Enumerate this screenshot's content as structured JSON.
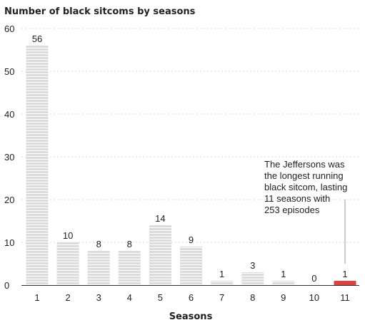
{
  "chart_data": {
    "type": "bar",
    "title": "Number of black sitcoms by seasons",
    "xlabel": "Seasons",
    "ylabel": "",
    "categories": [
      "1",
      "2",
      "3",
      "4",
      "5",
      "6",
      "7",
      "8",
      "9",
      "10",
      "11"
    ],
    "values": [
      56,
      10,
      8,
      8,
      14,
      9,
      1,
      3,
      1,
      0,
      1
    ],
    "ylim": [
      0,
      60
    ],
    "yticks": [
      0,
      10,
      20,
      30,
      40,
      50,
      60
    ],
    "grid": true,
    "highlight_index": 10,
    "bar_color": "#dcdcdc",
    "highlight_color": "#e0413c",
    "annotation": {
      "category": "11",
      "lines": [
        "The Jeffersons was",
        "the longest running",
        "black sitcom, lasting",
        "11 seasons with",
        "253 episodes"
      ]
    }
  }
}
